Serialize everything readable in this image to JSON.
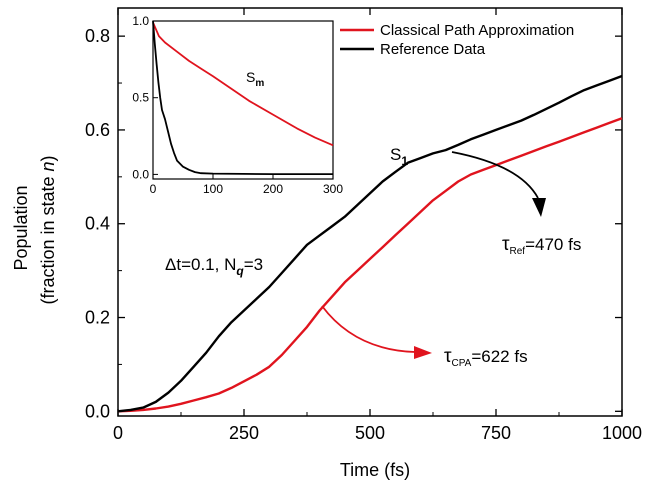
{
  "chart_data": {
    "type": "line",
    "xlabel": "Time (fs)",
    "ylabel_line1": "Population",
    "ylabel_line2": "(fraction in state n)",
    "xlim": [
      0,
      1000
    ],
    "ylim": [
      -0.01,
      0.86
    ],
    "xticks": [
      0,
      250,
      500,
      750,
      1000
    ],
    "yticks": [
      0.0,
      0.2,
      0.4,
      0.6,
      0.8
    ],
    "legend_position": "top-right",
    "series": [
      {
        "name": "Classical Path Approximation",
        "color": "#e0141e",
        "x": [
          0,
          25,
          50,
          75,
          100,
          125,
          150,
          175,
          200,
          225,
          250,
          275,
          300,
          325,
          350,
          375,
          400,
          425,
          450,
          475,
          500,
          525,
          550,
          575,
          600,
          625,
          650,
          675,
          700,
          725,
          750,
          775,
          800,
          825,
          850,
          875,
          900,
          925,
          950,
          975,
          1000
        ],
        "values": [
          0.0,
          0.001,
          0.003,
          0.006,
          0.01,
          0.016,
          0.023,
          0.03,
          0.038,
          0.05,
          0.064,
          0.078,
          0.095,
          0.12,
          0.15,
          0.18,
          0.215,
          0.245,
          0.275,
          0.3,
          0.325,
          0.35,
          0.375,
          0.4,
          0.425,
          0.45,
          0.47,
          0.49,
          0.505,
          0.515,
          0.525,
          0.535,
          0.545,
          0.555,
          0.565,
          0.575,
          0.585,
          0.595,
          0.605,
          0.615,
          0.625
        ]
      },
      {
        "name": "Reference Data",
        "color": "#000000",
        "x": [
          0,
          25,
          50,
          75,
          100,
          125,
          150,
          175,
          200,
          225,
          250,
          275,
          300,
          325,
          350,
          375,
          400,
          425,
          450,
          475,
          500,
          525,
          550,
          575,
          600,
          625,
          650,
          675,
          700,
          725,
          750,
          775,
          800,
          825,
          850,
          875,
          900,
          925,
          950,
          975,
          1000
        ],
        "values": [
          0.0,
          0.003,
          0.008,
          0.02,
          0.04,
          0.065,
          0.095,
          0.125,
          0.16,
          0.19,
          0.215,
          0.24,
          0.265,
          0.295,
          0.325,
          0.355,
          0.375,
          0.395,
          0.415,
          0.44,
          0.465,
          0.49,
          0.51,
          0.53,
          0.54,
          0.55,
          0.557,
          0.568,
          0.58,
          0.59,
          0.6,
          0.61,
          0.62,
          0.632,
          0.645,
          0.658,
          0.672,
          0.685,
          0.695,
          0.705,
          0.715
        ]
      }
    ],
    "inset": {
      "xlim": [
        0,
        300
      ],
      "ylim": [
        -0.03,
        1.0
      ],
      "xticks": [
        0,
        100,
        200,
        300
      ],
      "yticks": [
        0.0,
        0.5,
        1.0
      ],
      "ytick_labels": [
        "0.0",
        "0.5",
        "1.0"
      ],
      "label_main": "S",
      "label_sub": "m",
      "series": [
        {
          "color": "#e0141e",
          "x": [
            0,
            10,
            20,
            40,
            60,
            80,
            100,
            130,
            160,
            200,
            240,
            270,
            300
          ],
          "values": [
            0.99,
            0.9,
            0.86,
            0.8,
            0.74,
            0.69,
            0.64,
            0.56,
            0.48,
            0.39,
            0.3,
            0.24,
            0.19
          ]
        },
        {
          "color": "#000000",
          "x": [
            0,
            3,
            6,
            9,
            12,
            15,
            20,
            25,
            30,
            35,
            40,
            50,
            60,
            70,
            80,
            100,
            150,
            200,
            300
          ],
          "values": [
            1.0,
            0.85,
            0.72,
            0.6,
            0.5,
            0.42,
            0.36,
            0.28,
            0.2,
            0.14,
            0.09,
            0.05,
            0.03,
            0.015,
            0.008,
            0.005,
            0.003,
            0.002,
            0.002
          ]
        }
      ]
    }
  },
  "annotations": {
    "s1_main": "S",
    "s1_sub": "1",
    "dt_text": "Δt=0.1, N",
    "dt_sub": "q",
    "dt_tail": "=3",
    "tau_ref_main": "τ",
    "tau_ref_sub": "Ref",
    "tau_ref_value": "=470 fs",
    "tau_cpa_main": "τ",
    "tau_cpa_sub": "CPA",
    "tau_cpa_value": "=622 fs"
  }
}
